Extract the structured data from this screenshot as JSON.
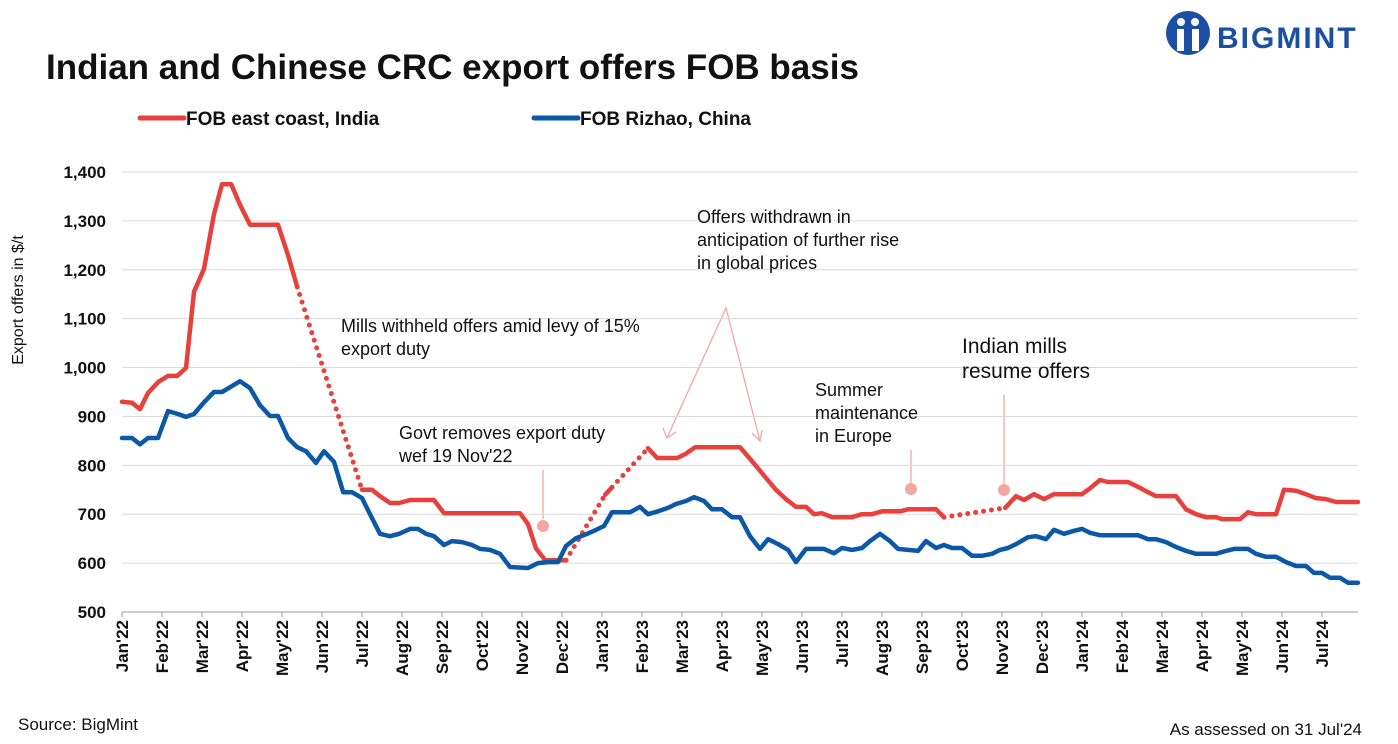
{
  "chart_data": {
    "type": "line",
    "title": "Indian and Chinese CRC export offers FOB basis",
    "logo": "BIGMINT",
    "ylabel": "Export offers in $/t",
    "source": "Source: BigMint",
    "note": "As assessed on 31 Jul'24",
    "grid": true,
    "legend": "top",
    "xlim": [
      0,
      30.9
    ],
    "ylim": [
      500,
      1400
    ],
    "yticks": [
      {
        "value": 1400,
        "label": "1,400"
      },
      {
        "value": 1300,
        "label": "1,300"
      },
      {
        "value": 1200,
        "label": "1,200"
      },
      {
        "value": 1100,
        "label": "1,100"
      },
      {
        "value": 1000,
        "label": "1,000"
      },
      900,
      800,
      700,
      600,
      500
    ],
    "xticks": [
      {
        "value": 0,
        "label": "Jan'22"
      },
      {
        "value": 1,
        "label": "Feb'22"
      },
      {
        "value": 2,
        "label": "Mar'22"
      },
      {
        "value": 3,
        "label": "Apr'22"
      },
      {
        "value": 4,
        "label": "May'22"
      },
      {
        "value": 5,
        "label": "Jun'22"
      },
      {
        "value": 6,
        "label": "Jul'22"
      },
      {
        "value": 7,
        "label": "Aug'22"
      },
      {
        "value": 8,
        "label": "Sep'22"
      },
      {
        "value": 9,
        "label": "Oct'22"
      },
      {
        "value": 10,
        "label": "Nov'22"
      },
      {
        "value": 11,
        "label": "Dec'22"
      },
      {
        "value": 12,
        "label": "Jan'23"
      },
      {
        "value": 13,
        "label": "Feb'23"
      },
      {
        "value": 14,
        "label": "Mar'23"
      },
      {
        "value": 15,
        "label": "Apr'23"
      },
      {
        "value": 16,
        "label": "May'23"
      },
      {
        "value": 17,
        "label": "Jun'23"
      },
      {
        "value": 18,
        "label": "Jul'23"
      },
      {
        "value": 19,
        "label": "Aug'23"
      },
      {
        "value": 20,
        "label": "Sep'23"
      },
      {
        "value": 21,
        "label": "Oct'23"
      },
      {
        "value": 22,
        "label": "Nov'23"
      },
      {
        "value": 23,
        "label": "Dec'23"
      },
      {
        "value": 24,
        "label": "Jan'24"
      },
      {
        "value": 25,
        "label": "Feb'24"
      },
      {
        "value": 26,
        "label": "Mar'24"
      },
      {
        "value": 27,
        "label": "Apr'24"
      },
      {
        "value": 28,
        "label": "May'24"
      },
      {
        "value": 29,
        "label": "Jun'24"
      },
      {
        "value": 30,
        "label": "Jul'24"
      }
    ],
    "series": [
      {
        "name": "FOB east coast, India",
        "color": "#e8413d",
        "dotted": [
          [
            4.38,
            6.0
          ],
          [
            11.1,
            12.08
          ],
          [
            12.25,
            13.15
          ],
          [
            20.55,
            22.08
          ]
        ],
        "x": [
          0,
          0.25,
          0.45,
          0.65,
          0.9,
          1.15,
          1.38,
          1.6,
          1.8,
          2.05,
          2.3,
          2.5,
          2.73,
          2.95,
          3.2,
          3.7,
          3.9,
          4.15,
          4.38,
          6.0,
          6.25,
          6.45,
          6.7,
          6.93,
          7.2,
          7.8,
          8.05,
          9.95,
          10.15,
          10.35,
          10.58,
          11.1,
          12.08,
          12.25,
          13.15,
          13.38,
          13.88,
          14.08,
          14.33,
          15.45,
          15.65,
          15.88,
          16.1,
          16.35,
          16.6,
          16.85,
          17.1,
          17.3,
          17.5,
          17.75,
          18.25,
          18.5,
          18.75,
          19.0,
          19.45,
          19.65,
          20.35,
          20.55,
          22.08,
          22.35,
          22.55,
          22.8,
          23.05,
          23.3,
          24.0,
          24.2,
          24.45,
          24.65,
          25.15,
          25.4,
          25.65,
          25.85,
          26.35,
          26.6,
          26.85,
          27.1,
          27.35,
          27.5,
          27.95,
          28.15,
          28.35,
          28.85,
          29.05,
          29.35,
          29.6,
          29.85,
          30.1,
          30.35,
          30.9
        ],
        "values": [
          930,
          928,
          915,
          948,
          970,
          983,
          983,
          999,
          1155,
          1202,
          1314,
          1375,
          1375,
          1333,
          1292,
          1292,
          1292,
          1230,
          1165,
          750,
          750,
          737,
          723,
          723,
          729,
          729,
          702,
          702,
          680,
          630,
          606,
          606,
          740,
          755,
          835,
          815,
          815,
          823,
          837,
          837,
          818,
          796,
          774,
          750,
          731,
          715,
          715,
          700,
          702,
          694,
          694,
          700,
          700,
          706,
          706,
          710,
          710,
          694,
          713,
          737,
          729,
          741,
          731,
          741,
          741,
          753,
          770,
          766,
          766,
          756,
          745,
          737,
          737,
          710,
          700,
          694,
          694,
          690,
          690,
          704,
          700,
          700,
          750,
          748,
          741,
          733,
          731,
          725,
          725
        ]
      },
      {
        "name": "FOB Rizhao, China",
        "color": "#0b58a8",
        "x": [
          0,
          0.25,
          0.45,
          0.65,
          0.9,
          1.15,
          1.4,
          1.6,
          1.8,
          2.05,
          2.3,
          2.5,
          2.75,
          2.95,
          3.2,
          3.45,
          3.7,
          3.9,
          4.15,
          4.38,
          4.6,
          4.85,
          5.05,
          5.3,
          5.53,
          5.75,
          6.0,
          6.25,
          6.45,
          6.7,
          6.93,
          7.2,
          7.4,
          7.6,
          7.8,
          8.05,
          8.25,
          8.5,
          8.75,
          8.95,
          9.2,
          9.45,
          9.7,
          10.15,
          10.4,
          10.65,
          10.9,
          11.1,
          11.35,
          11.6,
          11.85,
          12.05,
          12.25,
          12.7,
          12.95,
          13.15,
          13.4,
          13.65,
          13.85,
          14.1,
          14.3,
          14.55,
          14.75,
          15.0,
          15.25,
          15.45,
          15.7,
          15.95,
          16.15,
          16.4,
          16.65,
          16.85,
          17.1,
          17.55,
          17.8,
          18.0,
          18.25,
          18.5,
          18.7,
          18.95,
          19.2,
          19.4,
          19.65,
          19.9,
          20.1,
          20.35,
          20.55,
          20.75,
          21.0,
          21.25,
          21.5,
          21.75,
          21.95,
          22.15,
          22.4,
          22.65,
          22.85,
          23.1,
          23.3,
          23.55,
          23.8,
          24.0,
          24.2,
          24.45,
          25.4,
          25.65,
          25.85,
          26.1,
          26.35,
          26.6,
          26.85,
          27.35,
          27.6,
          27.8,
          28.15,
          28.35,
          28.6,
          28.85,
          29.1,
          29.35,
          29.6,
          29.8,
          30.0,
          30.2,
          30.45,
          30.65,
          30.9
        ],
        "values": [
          856,
          856,
          843,
          856,
          856,
          911,
          905,
          899,
          905,
          929,
          950,
          950,
          962,
          972,
          958,
          923,
          901,
          901,
          856,
          837,
          829,
          805,
          829,
          807,
          745,
          745,
          733,
          692,
          660,
          655,
          660,
          670,
          670,
          660,
          655,
          637,
          645,
          643,
          637,
          629,
          627,
          619,
          592,
          590,
          600,
          602,
          602,
          635,
          651,
          659,
          668,
          676,
          704,
          704,
          715,
          700,
          706,
          713,
          721,
          727,
          735,
          727,
          710,
          710,
          694,
          694,
          655,
          629,
          649,
          639,
          627,
          602,
          629,
          629,
          620,
          631,
          627,
          631,
          645,
          660,
          645,
          629,
          627,
          625,
          645,
          631,
          637,
          631,
          631,
          615,
          615,
          619,
          627,
          631,
          641,
          653,
          655,
          649,
          668,
          660,
          666,
          670,
          662,
          657,
          657,
          649,
          649,
          643,
          633,
          625,
          619,
          619,
          625,
          629,
          629,
          619,
          613,
          613,
          602,
          594,
          594,
          580,
          580,
          570,
          570,
          560,
          560
        ]
      }
    ],
    "annotations": [
      [
        "Mills withheld offers amid levy of 15%",
        "export duty"
      ],
      [
        "Govt removes export duty",
        "wef 19 Nov'22"
      ],
      [
        "Offers withdrawn in",
        "anticipation of further rise",
        "in global prices"
      ],
      [
        "Summer",
        "maintenance",
        "in Europe"
      ],
      [
        "Indian mills",
        "resume offers"
      ]
    ]
  }
}
